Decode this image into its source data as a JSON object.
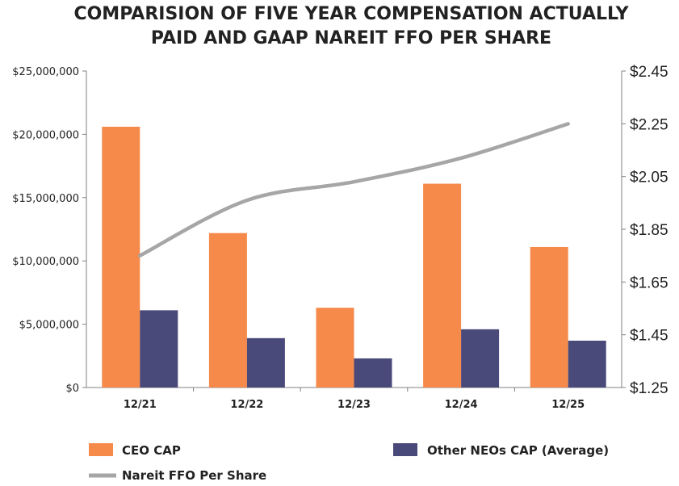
{
  "chart_data": {
    "type": "bar",
    "title_lines": [
      "COMPARISION OF FIVE YEAR COMPENSATION ACTUALLY",
      "PAID AND GAAP NAREIT FFO PER SHARE"
    ],
    "categories": [
      "12/21",
      "12/22",
      "12/23",
      "12/24",
      "12/25"
    ],
    "series": [
      {
        "name": "CEO CAP",
        "type": "bar",
        "axis": "left",
        "color": "#F58A4B",
        "values": [
          20600000,
          12200000,
          6300000,
          16100000,
          11100000
        ]
      },
      {
        "name": "Other NEOs CAP (Average)",
        "type": "bar",
        "axis": "left",
        "color": "#4A4A7A",
        "values": [
          6100000,
          3900000,
          2300000,
          4600000,
          3700000
        ]
      },
      {
        "name": "Nareit FFO Per Share",
        "type": "line",
        "axis": "right",
        "color": "#A6A6A6",
        "values": [
          1.75,
          1.96,
          2.03,
          2.12,
          2.25
        ]
      }
    ],
    "left_axis": {
      "ylim": [
        0,
        25000000
      ],
      "ticks": [
        {
          "value": 0,
          "label": "$0"
        },
        {
          "value": 5000000,
          "label": "$5,000,000"
        },
        {
          "value": 10000000,
          "label": "$10,000,000"
        },
        {
          "value": 15000000,
          "label": "$15,000,000"
        },
        {
          "value": 20000000,
          "label": "$20,000,000"
        },
        {
          "value": 25000000,
          "label": "$25,000,000"
        }
      ]
    },
    "right_axis": {
      "ylim": [
        1.25,
        2.45
      ],
      "ticks": [
        {
          "value": 1.25,
          "label": "$1.25"
        },
        {
          "value": 1.45,
          "label": "$1.45"
        },
        {
          "value": 1.65,
          "label": "$1.65"
        },
        {
          "value": 1.85,
          "label": "$1.85"
        },
        {
          "value": 2.05,
          "label": "$2.05"
        },
        {
          "value": 2.25,
          "label": "$2.25"
        },
        {
          "value": 2.45,
          "label": "$2.45"
        }
      ]
    },
    "grid": false,
    "legend_position": "bottom"
  }
}
